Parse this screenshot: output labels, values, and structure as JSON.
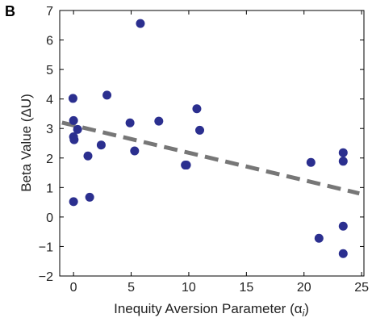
{
  "panel_label": "B",
  "chart_data": {
    "type": "scatter",
    "title": "",
    "xlabel": "Inequity Aversion Parameter (α",
    "xlabel_sub": "i",
    "xlabel_close": ")",
    "ylabel": "Beta Value (ΔU)",
    "xlim": [
      -1.2,
      25.2
    ],
    "ylim": [
      -2,
      7
    ],
    "xticks": [
      0,
      5,
      10,
      15,
      20,
      25
    ],
    "yticks": [
      -2,
      -1,
      0,
      1,
      2,
      3,
      4,
      5,
      6,
      7
    ],
    "xtick_labels": [
      "0",
      "5",
      "10",
      "15",
      "20",
      "25"
    ],
    "ytick_labels": [
      "−2",
      "−1",
      "0",
      "1",
      "2",
      "3",
      "4",
      "5",
      "6",
      "7"
    ],
    "grid": false,
    "point_color": "#2b2f8f",
    "trend_color": "#777777",
    "points": [
      {
        "x": -0.05,
        "y": 4.02
      },
      {
        "x": 0.0,
        "y": 3.27
      },
      {
        "x": 0.35,
        "y": 2.97
      },
      {
        "x": 0.0,
        "y": 2.72
      },
      {
        "x": 0.05,
        "y": 2.62
      },
      {
        "x": 0.0,
        "y": 0.52
      },
      {
        "x": 1.25,
        "y": 2.07
      },
      {
        "x": 1.4,
        "y": 0.67
      },
      {
        "x": 2.4,
        "y": 2.44
      },
      {
        "x": 2.9,
        "y": 4.13
      },
      {
        "x": 4.9,
        "y": 3.19
      },
      {
        "x": 5.3,
        "y": 2.24
      },
      {
        "x": 5.8,
        "y": 6.56
      },
      {
        "x": 7.4,
        "y": 3.25
      },
      {
        "x": 9.7,
        "y": 1.76
      },
      {
        "x": 9.8,
        "y": 1.76
      },
      {
        "x": 10.7,
        "y": 3.67
      },
      {
        "x": 10.95,
        "y": 2.94
      },
      {
        "x": 20.6,
        "y": 1.85
      },
      {
        "x": 21.3,
        "y": -0.72
      },
      {
        "x": 23.4,
        "y": 2.18
      },
      {
        "x": 23.4,
        "y": 1.89
      },
      {
        "x": 23.4,
        "y": -0.31
      },
      {
        "x": 23.4,
        "y": -1.24
      }
    ],
    "trend": {
      "x": [
        -1.0,
        24.8
      ],
      "y": [
        3.2,
        0.8
      ]
    }
  }
}
